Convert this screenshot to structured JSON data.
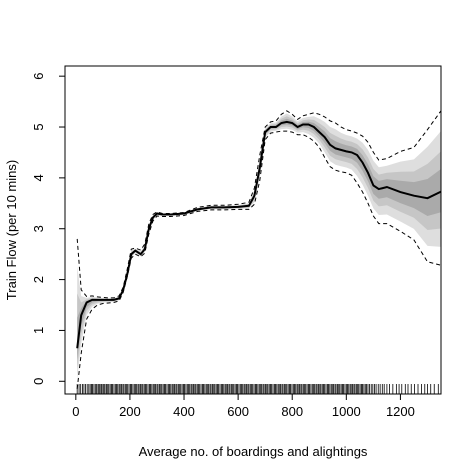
{
  "chart_data": {
    "type": "line",
    "title": "",
    "xlabel": "Average no. of boardings and alightings",
    "ylabel": "Train Flow (per 10 mins)",
    "xlim": [
      -40,
      1350
    ],
    "ylim": [
      -0.25,
      6.2
    ],
    "x_ticks": [
      0,
      200,
      400,
      600,
      800,
      1000,
      1200
    ],
    "y_ticks": [
      0,
      1,
      2,
      3,
      4,
      5,
      6
    ],
    "grid": false,
    "legend": "none",
    "colors": {
      "fit": "#000000",
      "bounds": "#000000",
      "band_outer": "#dedede",
      "band_middle": "#c6c6c6",
      "band_inner": "#aaaaaa",
      "rug": "#000000"
    },
    "series": [
      {
        "role": "fitted",
        "x": [
          5,
          20,
          40,
          60,
          80,
          100,
          120,
          140,
          160,
          175,
          190,
          205,
          220,
          240,
          255,
          270,
          285,
          300,
          320,
          350,
          400,
          450,
          500,
          550,
          600,
          640,
          660,
          680,
          700,
          720,
          740,
          760,
          780,
          800,
          820,
          840,
          860,
          880,
          900,
          920,
          940,
          960,
          980,
          1000,
          1020,
          1040,
          1060,
          1080,
          1100,
          1120,
          1150,
          1200,
          1250,
          1300,
          1350
        ],
        "y": [
          0.65,
          1.3,
          1.55,
          1.6,
          1.6,
          1.6,
          1.6,
          1.6,
          1.63,
          1.8,
          2.1,
          2.5,
          2.57,
          2.5,
          2.6,
          3.0,
          3.22,
          3.3,
          3.28,
          3.28,
          3.3,
          3.38,
          3.42,
          3.42,
          3.43,
          3.45,
          3.65,
          4.2,
          4.9,
          5.0,
          5.0,
          5.08,
          5.1,
          5.08,
          5.0,
          5.05,
          5.05,
          5.0,
          4.9,
          4.8,
          4.65,
          4.58,
          4.55,
          4.52,
          4.5,
          4.45,
          4.3,
          4.1,
          3.85,
          3.78,
          3.82,
          3.72,
          3.65,
          3.6,
          3.73
        ]
      },
      {
        "role": "upper-bound",
        "x": [
          5,
          20,
          40,
          60,
          80,
          100,
          120,
          140,
          160,
          175,
          190,
          205,
          220,
          240,
          255,
          270,
          285,
          300,
          320,
          350,
          400,
          450,
          500,
          550,
          600,
          640,
          660,
          680,
          700,
          720,
          740,
          760,
          780,
          800,
          820,
          840,
          860,
          880,
          900,
          920,
          940,
          960,
          980,
          1000,
          1020,
          1040,
          1060,
          1080,
          1100,
          1120,
          1150,
          1200,
          1250,
          1300,
          1350
        ],
        "y": [
          2.8,
          1.8,
          1.67,
          1.68,
          1.66,
          1.65,
          1.64,
          1.64,
          1.68,
          1.85,
          2.2,
          2.6,
          2.62,
          2.58,
          2.7,
          3.1,
          3.28,
          3.33,
          3.3,
          3.3,
          3.32,
          3.42,
          3.46,
          3.46,
          3.48,
          3.52,
          3.8,
          4.45,
          5.0,
          5.1,
          5.12,
          5.25,
          5.32,
          5.25,
          5.15,
          5.22,
          5.25,
          5.28,
          5.25,
          5.2,
          5.12,
          5.08,
          5.0,
          4.95,
          4.92,
          4.88,
          4.82,
          4.7,
          4.5,
          4.35,
          4.38,
          4.52,
          4.6,
          4.95,
          5.32
        ]
      },
      {
        "role": "lower-bound",
        "x": [
          5,
          20,
          40,
          60,
          80,
          100,
          120,
          140,
          160,
          175,
          190,
          205,
          220,
          240,
          255,
          270,
          285,
          300,
          320,
          350,
          400,
          450,
          500,
          550,
          600,
          640,
          660,
          680,
          700,
          720,
          740,
          760,
          780,
          800,
          820,
          840,
          860,
          880,
          900,
          920,
          940,
          960,
          980,
          1000,
          1020,
          1040,
          1060,
          1080,
          1100,
          1120,
          1150,
          1200,
          1250,
          1300,
          1350
        ],
        "y": [
          -0.15,
          0.55,
          1.22,
          1.42,
          1.5,
          1.53,
          1.54,
          1.55,
          1.58,
          1.75,
          2.05,
          2.42,
          2.5,
          2.45,
          2.52,
          2.9,
          3.15,
          3.25,
          3.24,
          3.24,
          3.26,
          3.34,
          3.37,
          3.37,
          3.38,
          3.38,
          3.48,
          3.95,
          4.75,
          4.88,
          4.9,
          4.92,
          4.92,
          4.9,
          4.85,
          4.85,
          4.8,
          4.72,
          4.6,
          4.4,
          4.22,
          4.15,
          4.12,
          4.1,
          4.05,
          3.9,
          3.72,
          3.5,
          3.25,
          3.1,
          3.1,
          2.95,
          2.78,
          2.35,
          2.28
        ]
      }
    ],
    "rug_x": [
      5,
      12,
      18,
      25,
      30,
      36,
      42,
      48,
      53,
      58,
      62,
      67,
      72,
      77,
      82,
      86,
      90,
      95,
      100,
      104,
      108,
      113,
      118,
      122,
      127,
      132,
      136,
      141,
      146,
      150,
      155,
      160,
      164,
      169,
      174,
      178,
      183,
      188,
      192,
      197,
      202,
      206,
      211,
      216,
      220,
      225,
      230,
      234,
      239,
      244,
      248,
      253,
      258,
      262,
      267,
      272,
      276,
      281,
      286,
      290,
      295,
      300,
      304,
      309,
      314,
      318,
      323,
      328,
      332,
      337,
      342,
      346,
      351,
      356,
      360,
      365,
      370,
      374,
      379,
      384,
      388,
      393,
      398,
      402,
      407,
      412,
      416,
      421,
      426,
      430,
      435,
      440,
      444,
      449,
      454,
      458,
      463,
      468,
      472,
      477,
      482,
      486,
      491,
      496,
      500,
      505,
      510,
      514,
      519,
      524,
      528,
      533,
      538,
      542,
      547,
      552,
      556,
      561,
      566,
      570,
      575,
      580,
      584,
      589,
      594,
      598,
      603,
      608,
      612,
      617,
      622,
      626,
      631,
      636,
      640,
      645,
      650,
      654,
      659,
      664,
      668,
      673,
      678,
      682,
      687,
      692,
      696,
      701,
      706,
      710,
      715,
      720,
      724,
      729,
      734,
      738,
      743,
      748,
      752,
      757,
      762,
      766,
      771,
      776,
      780,
      785,
      790,
      794,
      799,
      804,
      808,
      813,
      818,
      822,
      827,
      832,
      836,
      841,
      846,
      850,
      855,
      860,
      864,
      869,
      874,
      878,
      883,
      888,
      892,
      897,
      902,
      906,
      911,
      916,
      920,
      925,
      930,
      934,
      939,
      944,
      948,
      953,
      958,
      962,
      967,
      972,
      976,
      981,
      986,
      990,
      995,
      1000,
      1004,
      1009,
      1014,
      1018,
      1023,
      1028,
      1032,
      1037,
      1042,
      1046,
      1051,
      1056,
      1060,
      1065,
      1070,
      1075,
      1080,
      1086,
      1092,
      1098,
      1104,
      1110,
      1118,
      1125,
      1133,
      1140,
      1150,
      1160,
      1172,
      1185,
      1195,
      1205,
      1218,
      1228,
      1240,
      1252,
      1265,
      1278,
      1290,
      1300,
      1312,
      1325,
      1340
    ]
  }
}
